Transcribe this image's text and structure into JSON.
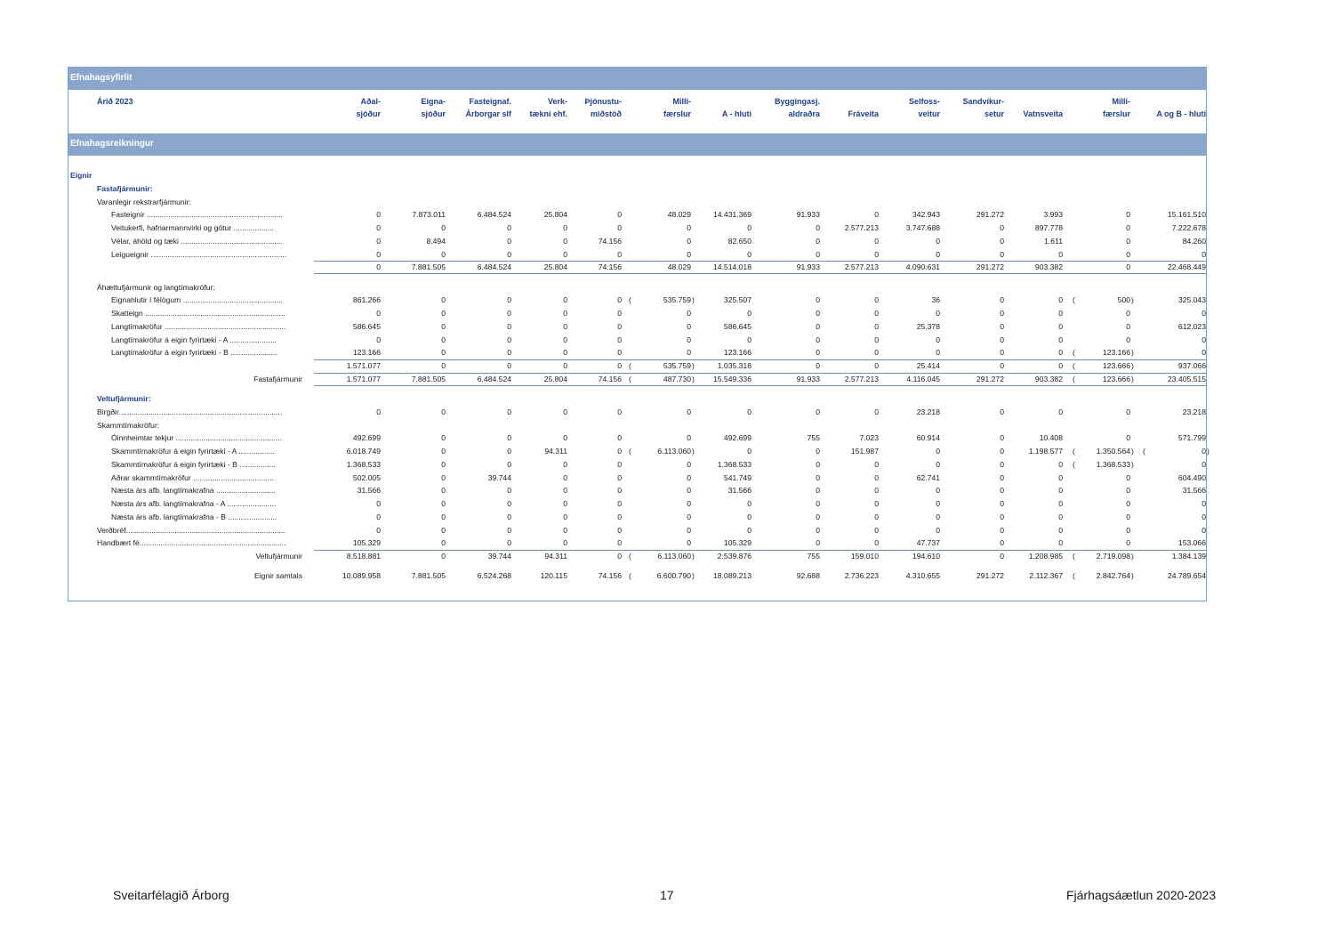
{
  "bands": {
    "title": "Efnahagsyfirlit",
    "section": "Efnahagsreikningur"
  },
  "header": {
    "year_label": "Árið 2023",
    "columns": [
      {
        "l1": "Aðal-",
        "l2": "sjóður"
      },
      {
        "l1": "Eigna-",
        "l2": "sjóður"
      },
      {
        "l1": "Fasteignaf.",
        "l2": "Árborgar slf"
      },
      {
        "l1": "Verk-",
        "l2": "tækni ehf."
      },
      {
        "l1": "Þjónustu-",
        "l2": "miðstöð"
      },
      {
        "l1": "Milli-",
        "l2": "færslur"
      },
      {
        "l1": "",
        "l2": "A - hluti"
      },
      {
        "l1": "Byggingasj.",
        "l2": "aldraðra"
      },
      {
        "l1": "",
        "l2": "Fráveita"
      },
      {
        "l1": "Selfoss-",
        "l2": "veitur"
      },
      {
        "l1": "Sandvíkur-",
        "l2": "setur"
      },
      {
        "l1": "",
        "l2": "Vatnsveita"
      },
      {
        "l1": "Milli-",
        "l2": "færslur"
      },
      {
        "l1": "",
        "l2": "A og B - hluti"
      }
    ]
  },
  "rows": [
    {
      "label": "Eignir",
      "indent": 0,
      "style": "sec"
    },
    {
      "label": "Fastafjármunir:",
      "indent": 1,
      "style": "sec"
    },
    {
      "label": "Varanlegir rekstrarfjármunir:",
      "indent": 1
    },
    {
      "label": "Fasteignir ................................................................",
      "indent": 2,
      "values": [
        "0",
        "7.873.011",
        "6.484.524",
        "25.804",
        "0",
        "48.029",
        "14.431.369",
        "91.933",
        "0",
        "342.943",
        "291.272",
        "3.993",
        "0",
        "15.161.510"
      ]
    },
    {
      "label": "Veitukerfi, hafnarmannvirki og götur ...................",
      "indent": 2,
      "values": [
        "0",
        "0",
        "0",
        "0",
        "0",
        "0",
        "0",
        "0",
        "2.577.213",
        "3.747.688",
        "0",
        "897.778",
        "0",
        "7.222.678"
      ]
    },
    {
      "label": "Vélar, áhöld og tæki ................................................",
      "indent": 2,
      "values": [
        "0",
        "8.494",
        "0",
        "0",
        "74.156",
        "0",
        "82.650",
        "0",
        "0",
        "0",
        "0",
        "1.611",
        "0",
        "84.260"
      ]
    },
    {
      "label": "Leigueignir ................................................................",
      "indent": 2,
      "values": [
        "0",
        "0",
        "0",
        "0",
        "0",
        "0",
        "0",
        "0",
        "0",
        "0",
        "0",
        "0",
        "0",
        "0"
      ]
    },
    {
      "label": "",
      "indent": 2,
      "values": [
        "0",
        "7.881.505",
        "6.484.524",
        "25.804",
        "74.156",
        "48.029",
        "14.514.018",
        "91.933",
        "2.577.213",
        "4.090.631",
        "291.272",
        "903.382",
        "0",
        "22.468.449"
      ],
      "rule_top": true,
      "rule_bottom": true,
      "gap_after": true
    },
    {
      "label": "Áhættufjármunir og langtímakröfur:",
      "indent": 1
    },
    {
      "label": "Eignahlutir í félögum ...............................................",
      "indent": 2,
      "values": [
        "861.266",
        "0",
        "0",
        "0",
        "0",
        "535.759",
        "325.507",
        "0",
        "0",
        "36",
        "0",
        "0",
        "500",
        "325.043"
      ],
      "neg": [
        5,
        12
      ]
    },
    {
      "label": "Skatteign ..................................................................",
      "indent": 2,
      "values": [
        "0",
        "0",
        "0",
        "0",
        "0",
        "0",
        "0",
        "0",
        "0",
        "0",
        "0",
        "0",
        "0",
        "0"
      ]
    },
    {
      "label": "Langtímakröfur .........................................................",
      "indent": 2,
      "values": [
        "586.645",
        "0",
        "0",
        "0",
        "0",
        "0",
        "586.645",
        "0",
        "0",
        "25.378",
        "0",
        "0",
        "0",
        "612.023"
      ]
    },
    {
      "label": "Langtímakröfur á eigin fyrirtæki - A ......................",
      "indent": 2,
      "values": [
        "0",
        "0",
        "0",
        "0",
        "0",
        "0",
        "0",
        "0",
        "0",
        "0",
        "0",
        "0",
        "0",
        "0"
      ]
    },
    {
      "label": "Langtímakröfur á eigin fyrirtæki - B ......................",
      "indent": 2,
      "values": [
        "123.166",
        "0",
        "0",
        "0",
        "0",
        "0",
        "123.166",
        "0",
        "0",
        "0",
        "0",
        "0",
        "123.166",
        "0"
      ],
      "neg": [
        12
      ]
    },
    {
      "label": "",
      "indent": 2,
      "values": [
        "1.571.077",
        "0",
        "0",
        "0",
        "0",
        "535.759",
        "1.035.318",
        "0",
        "0",
        "25.414",
        "0",
        "0",
        "123.666",
        "937.066"
      ],
      "neg": [
        5,
        12
      ],
      "rule_top": true
    },
    {
      "label": "Fastafjármunir",
      "align": "right",
      "values": [
        "1.571.077",
        "7.881.505",
        "6.484.524",
        "25.804",
        "74.156",
        "487.730",
        "15.549.336",
        "91.933",
        "2.577.213",
        "4.116.045",
        "291.272",
        "903.382",
        "123.666",
        "23.405.515"
      ],
      "neg": [
        5,
        12
      ],
      "rule_top": true,
      "rule_bottom": true,
      "gap_after": true
    },
    {
      "label": "Veltufjármunir:",
      "indent": 1,
      "style": "sec"
    },
    {
      "label": "Birgðir.............................................................................",
      "indent": 1,
      "values": [
        "0",
        "0",
        "0",
        "0",
        "0",
        "0",
        "0",
        "0",
        "0",
        "23.218",
        "0",
        "0",
        "0",
        "23.218"
      ]
    },
    {
      "label": "Skammtímakröfur:",
      "indent": 1
    },
    {
      "label": "Óinnheimtar tekjur ..................................................",
      "indent": 2,
      "values": [
        "492.699",
        "0",
        "0",
        "0",
        "0",
        "0",
        "492.699",
        "755",
        "7.023",
        "60.914",
        "0",
        "10.408",
        "0",
        "571.799"
      ]
    },
    {
      "label": "Skammtímakröfur á eigin fyrirtæki - A .................",
      "indent": 2,
      "values": [
        "6.018.749",
        "0",
        "0",
        "94.311",
        "0",
        "6.113.060",
        "0",
        "0",
        "151.987",
        "0",
        "0",
        "1.198.577",
        "1.350.564",
        "0"
      ],
      "neg": [
        5,
        12,
        13
      ]
    },
    {
      "label": "Skammtímakröfur á eigin fyrirtæki - B .................",
      "indent": 2,
      "values": [
        "1.368.533",
        "0",
        "0",
        "0",
        "0",
        "0",
        "1.368.533",
        "0",
        "0",
        "0",
        "0",
        "0",
        "1.368.533",
        "0"
      ],
      "neg": [
        12
      ]
    },
    {
      "label": "Aðrar skammtímakröfur ......................................",
      "indent": 2,
      "values": [
        "502.005",
        "0",
        "39.744",
        "0",
        "0",
        "0",
        "541.749",
        "0",
        "0",
        "62.741",
        "0",
        "0",
        "0",
        "604.490"
      ]
    },
    {
      "label": "Næsta árs afb. langtímakrafna ............................",
      "indent": 2,
      "values": [
        "31.566",
        "0",
        "0",
        "0",
        "0",
        "0",
        "31.566",
        "0",
        "0",
        "0",
        "0",
        "0",
        "0",
        "31.566"
      ]
    },
    {
      "label": "Næsta árs afb. langtímakrafna - A .......................",
      "indent": 2,
      "values": [
        "0",
        "0",
        "0",
        "0",
        "0",
        "0",
        "0",
        "0",
        "0",
        "0",
        "0",
        "0",
        "0",
        "0"
      ]
    },
    {
      "label": "Næsta árs afb. langtímakrafna - B .......................",
      "indent": 2,
      "values": [
        "0",
        "0",
        "0",
        "0",
        "0",
        "0",
        "0",
        "0",
        "0",
        "0",
        "0",
        "0",
        "0",
        "0"
      ]
    },
    {
      "label": "Verðbréf...........................................................................",
      "indent": 1,
      "values": [
        "0",
        "0",
        "0",
        "0",
        "0",
        "0",
        "0",
        "0",
        "0",
        "0",
        "0",
        "0",
        "0",
        "0"
      ]
    },
    {
      "label": "Handbært fé.....................................................................",
      "indent": 1,
      "values": [
        "105.329",
        "0",
        "0",
        "0",
        "0",
        "0",
        "105.329",
        "0",
        "0",
        "47.737",
        "0",
        "0",
        "0",
        "153.066"
      ]
    },
    {
      "label": "Veltufjármunir",
      "align": "right",
      "values": [
        "8.518.881",
        "0",
        "39.744",
        "94.311",
        "0",
        "6.113.060",
        "2.539.876",
        "755",
        "159.010",
        "194.610",
        "0",
        "1.208.985",
        "2.719.098",
        "1.384.139"
      ],
      "neg": [
        5,
        12
      ],
      "rule_top": true,
      "gap_after": true
    },
    {
      "label": "Eignir samtals",
      "align": "right",
      "values": [
        "10.089.958",
        "7.881.505",
        "6.524.268",
        "120.115",
        "74.156",
        "6.600.790",
        "18.089.213",
        "92.688",
        "2.736.223",
        "4.310.655",
        "291.272",
        "2.112.367",
        "2.842.764",
        "24.789.654"
      ],
      "neg": [
        5,
        12
      ]
    }
  ],
  "footer": {
    "left": "Sveitarfélagið Árborg",
    "center": "17",
    "right": "Fjárhagsáætlun 2020-2023"
  }
}
